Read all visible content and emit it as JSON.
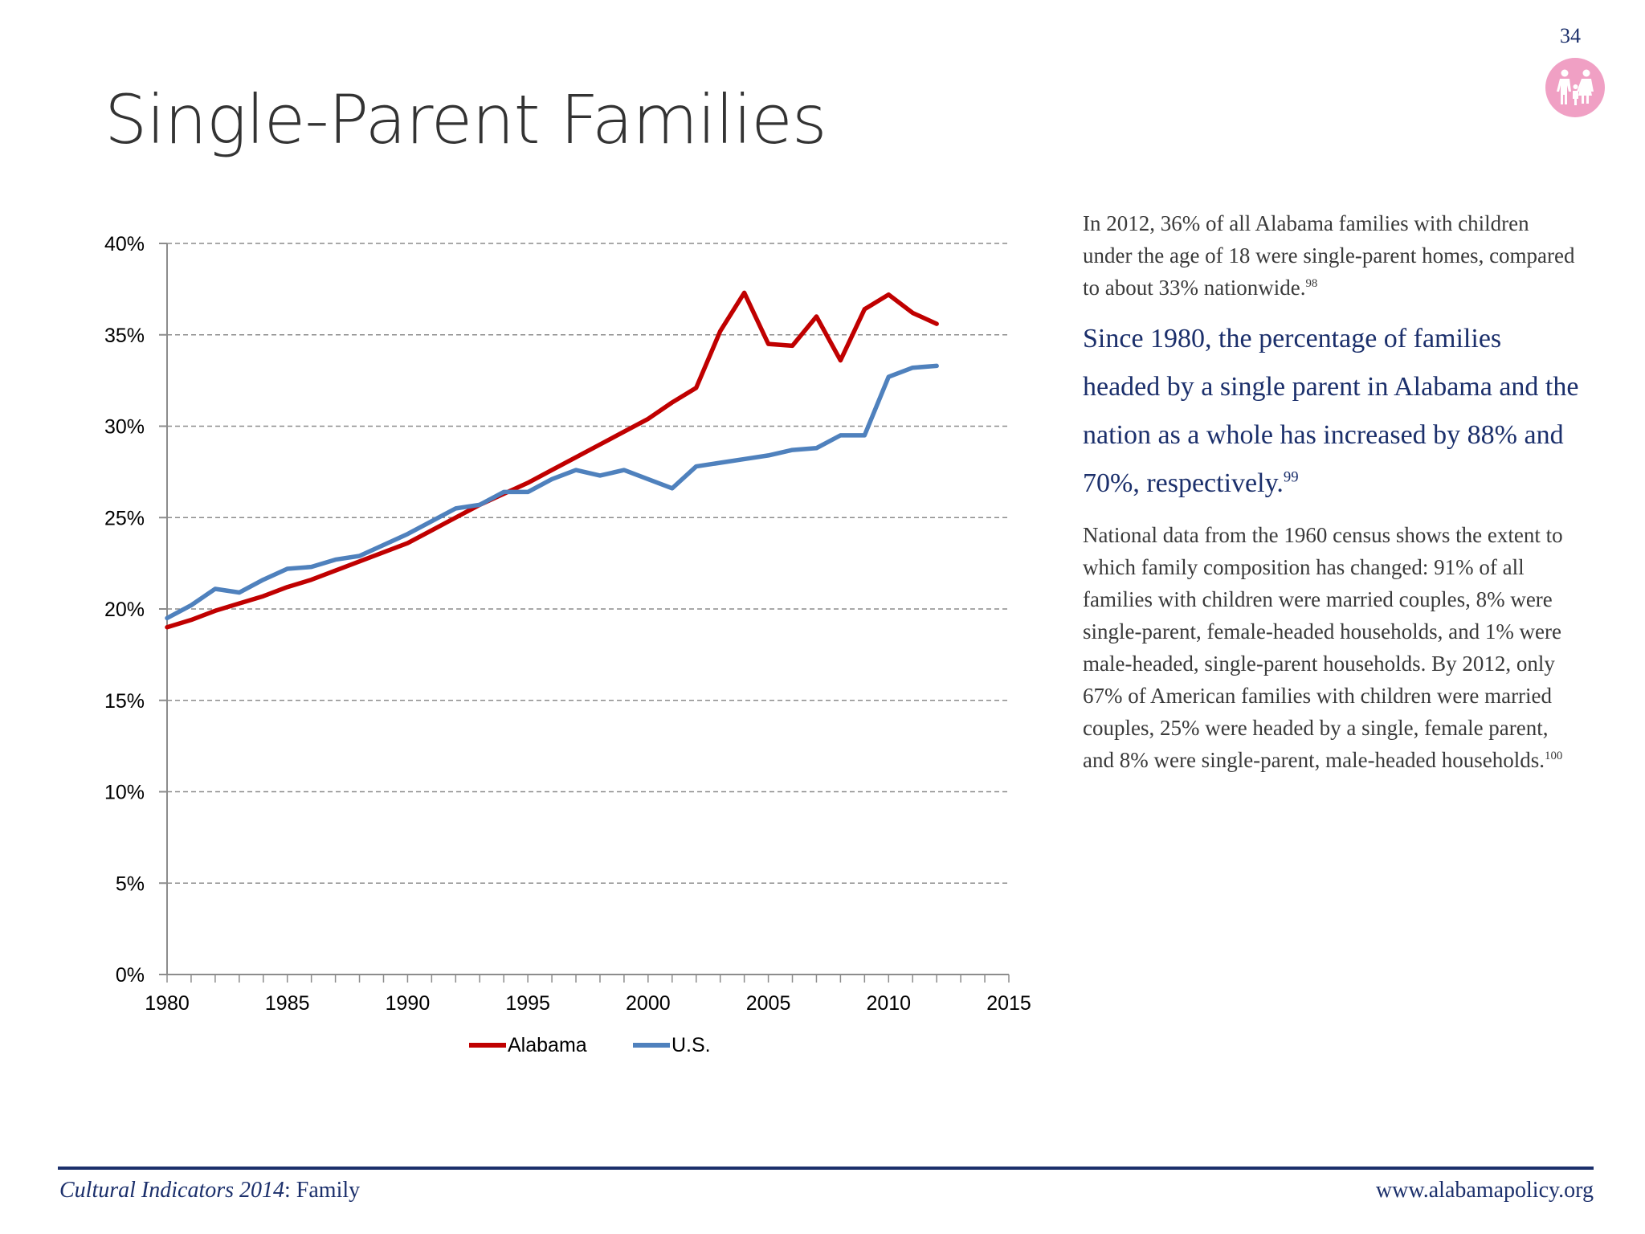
{
  "page": {
    "number": "34",
    "title": "Single-Parent Families",
    "icon": "family-icon",
    "accent_color": "#f0a0c4"
  },
  "text": {
    "para1": "In 2012, 36% of all Alabama families with children under the age of 18 were single-parent homes, compared to about 33% nationwide.",
    "para1_note": "98",
    "para2": "Since 1980, the percentage of families headed by a single parent in Alabama and the nation as a whole has increased by 88% and 70%, respectively.",
    "para2_note": "99",
    "para3": "National data from the 1960 census shows the extent to which family composition has changed: 91% of all families with children were married couples, 8% were single-parent, female-headed households, and 1% were male-headed, single-parent households.  By 2012, only 67% of American families with children were married couples, 25% were headed by a single, female parent, and 8% were single-parent, male-headed households.",
    "para3_note": "100"
  },
  "footer": {
    "left_italic": "Cultural Indicators 2014",
    "left_rest": ": Family",
    "right": "www.alabamapolicy.org"
  },
  "chart_data": {
    "type": "line",
    "title": "",
    "xlabel": "",
    "ylabel": "",
    "xlim": [
      1980,
      2015
    ],
    "ylim": [
      0,
      40
    ],
    "x_ticks": [
      1980,
      1985,
      1990,
      1995,
      2000,
      2005,
      2010,
      2015
    ],
    "y_ticks": [
      0,
      5,
      10,
      15,
      20,
      25,
      30,
      35,
      40
    ],
    "y_tick_labels": [
      "0%",
      "5%",
      "10%",
      "15%",
      "20%",
      "25%",
      "30%",
      "35%",
      "40%"
    ],
    "grid": "horizontal dashed",
    "legend_position": "bottom",
    "x": [
      1980,
      1981,
      1982,
      1983,
      1984,
      1985,
      1986,
      1987,
      1988,
      1989,
      1990,
      1991,
      1992,
      1993,
      1994,
      1995,
      1996,
      1997,
      1998,
      1999,
      2000,
      2001,
      2002,
      2003,
      2004,
      2005,
      2006,
      2007,
      2008,
      2009,
      2010,
      2011,
      2012
    ],
    "series": [
      {
        "name": "Alabama",
        "color": "#c00000",
        "values": [
          19.0,
          19.4,
          19.9,
          20.3,
          20.7,
          21.2,
          21.6,
          22.1,
          22.6,
          23.1,
          23.6,
          24.3,
          25.0,
          25.7,
          26.3,
          26.9,
          27.6,
          28.3,
          29.0,
          29.7,
          30.4,
          31.3,
          32.1,
          35.2,
          37.3,
          34.5,
          34.4,
          36.0,
          33.6,
          36.4,
          37.2,
          36.2,
          35.6
        ]
      },
      {
        "name": "U.S.",
        "color": "#4f81bd",
        "values": [
          19.5,
          20.2,
          21.1,
          20.9,
          21.6,
          22.2,
          22.3,
          22.7,
          22.9,
          23.5,
          24.1,
          24.8,
          25.5,
          25.7,
          26.4,
          26.4,
          27.1,
          27.6,
          27.3,
          27.6,
          27.1,
          26.6,
          27.8,
          28.0,
          28.2,
          28.4,
          28.7,
          28.8,
          29.5,
          29.5,
          32.7,
          33.2,
          33.3
        ]
      }
    ]
  }
}
